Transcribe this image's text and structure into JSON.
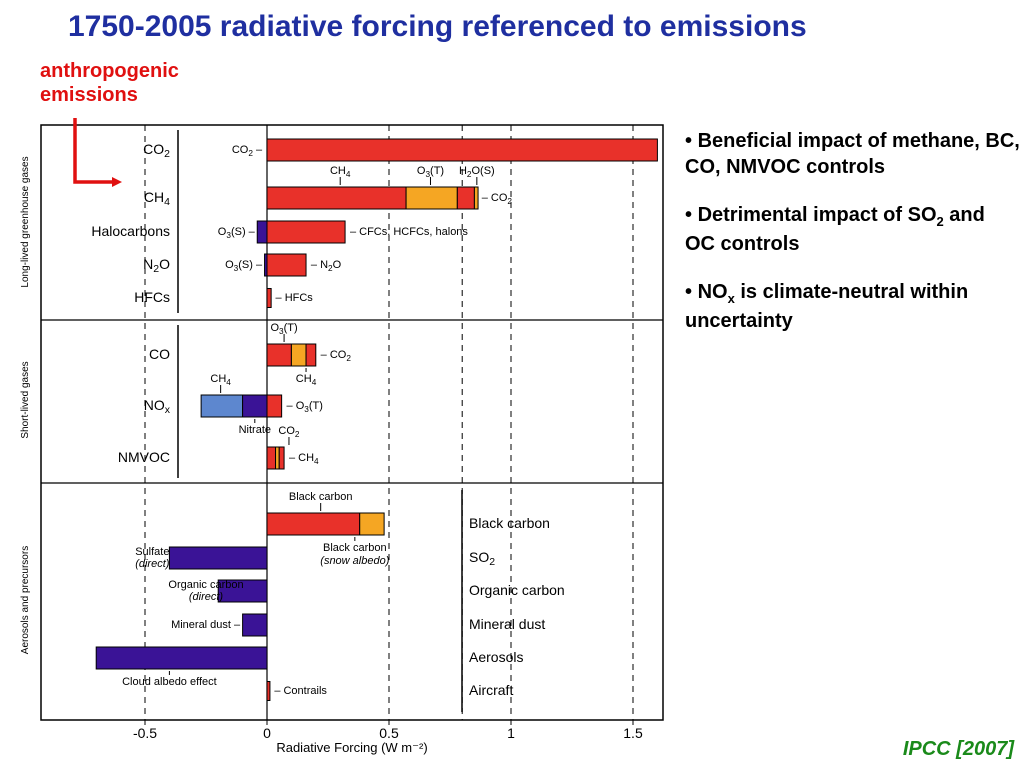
{
  "slide": {
    "title": "1750-2005 radiative forcing referenced to emissions",
    "annotation_line1": "anthropogenic",
    "annotation_line2": "emissions",
    "bullets": [
      {
        "prefix": "• ",
        "text": "Beneficial impact of methane, BC, CO, NMVOC controls"
      },
      {
        "prefix": "• ",
        "text": "Detrimental impact of SO",
        "sub": "2",
        "suffix": " and OC controls"
      },
      {
        "prefix": "• ",
        "text": "NO",
        "sub": "x",
        "suffix": "  is climate-neutral within uncertainty"
      }
    ],
    "citation": "IPCC [2007]"
  },
  "colors": {
    "red": "#e8312a",
    "orange": "#f5a623",
    "dark_blue": "#3a1396",
    "light_blue": "#5d87cf",
    "title_blue": "#1f2fa0",
    "annotation_red": "#e01010",
    "citation_green": "#1a8a1a"
  },
  "chart_data": {
    "type": "bar",
    "orientation": "horizontal-stacked",
    "xlabel": "Radiative Forcing  (W m⁻²)",
    "xlim": [
      -0.88,
      1.6
    ],
    "xticks": [
      -0.5,
      0,
      0.5,
      1,
      1.5
    ],
    "xtick_labels": [
      "-0.5",
      "0",
      "0.5",
      "1",
      "1.5"
    ],
    "dashed_gridlines_x": [
      -0.5,
      0.5,
      0.8,
      1.0,
      1.5
    ],
    "groups": [
      {
        "label": "Long-lived greenhouse gases"
      },
      {
        "label": "Short-lived gases"
      },
      {
        "label": "Aerosols and precursors"
      }
    ],
    "rows": [
      {
        "group": 0,
        "name": "CO2",
        "label_main": "CO",
        "label_sub": "2",
        "segments": [
          {
            "from": 0,
            "to": 1.6,
            "color": "red"
          }
        ],
        "annotations": [
          {
            "text": "CO",
            "sub": "2",
            "suffix": " –",
            "anchor_x": -0.02,
            "side": "left",
            "size": 11
          }
        ]
      },
      {
        "group": 0,
        "name": "CH4",
        "label_main": "CH",
        "label_sub": "4",
        "segments": [
          {
            "from": 0,
            "to": 0.57,
            "color": "red"
          },
          {
            "from": 0.57,
            "to": 0.78,
            "color": "orange"
          },
          {
            "from": 0.78,
            "to": 0.85,
            "color": "red"
          },
          {
            "from": 0.85,
            "to": 0.865,
            "color": "orange"
          }
        ],
        "annotations": [
          {
            "text": "CH",
            "sub": "4",
            "anchor_x": 0.3,
            "side": "above",
            "size": 11
          },
          {
            "text": "O",
            "sub": "3",
            "suffix": "(T)",
            "anchor_x": 0.67,
            "side": "above",
            "size": 11
          },
          {
            "text": "H",
            "sub": "2",
            "suffix": "O(S)",
            "anchor_x": 0.86,
            "side": "above",
            "size": 11
          },
          {
            "text": "– CO",
            "sub": "2",
            "anchor_x": 0.88,
            "side": "right",
            "size": 11
          }
        ]
      },
      {
        "group": 0,
        "name": "Halocarbons",
        "label_main": "Halocarbons",
        "label_sub": "",
        "segments": [
          {
            "from": -0.04,
            "to": 0,
            "color": "dark_blue"
          },
          {
            "from": 0,
            "to": 0.32,
            "color": "red"
          }
        ],
        "annotations": [
          {
            "text": "O",
            "sub": "3",
            "suffix": "(S) –",
            "anchor_x": -0.05,
            "side": "left",
            "size": 11
          },
          {
            "text": "– CFCs, HCFCs, halons",
            "anchor_x": 0.34,
            "side": "right",
            "size": 11
          }
        ]
      },
      {
        "group": 0,
        "name": "N2O",
        "label_main": "N",
        "label_sub": "2",
        "label_suffix": "O",
        "segments": [
          {
            "from": -0.01,
            "to": 0,
            "color": "dark_blue"
          },
          {
            "from": 0,
            "to": 0.16,
            "color": "red"
          }
        ],
        "annotations": [
          {
            "text": "O",
            "sub": "3",
            "suffix": "(S) –",
            "anchor_x": -0.02,
            "side": "left",
            "size": 11
          },
          {
            "text": "– N",
            "sub": "2",
            "suffix": "O",
            "anchor_x": 0.18,
            "side": "right",
            "size": 11
          }
        ]
      },
      {
        "group": 0,
        "name": "HFCs",
        "label_main": "HFCs",
        "label_sub": "",
        "segments": [
          {
            "from": 0,
            "to": 0.017,
            "color": "red"
          }
        ],
        "annotations": [
          {
            "text": "– HFCs",
            "anchor_x": 0.035,
            "side": "right",
            "size": 11
          }
        ]
      },
      {
        "group": 1,
        "name": "CO",
        "label_main": "CO",
        "label_sub": "",
        "segments": [
          {
            "from": 0,
            "to": 0.1,
            "color": "red"
          },
          {
            "from": 0.1,
            "to": 0.16,
            "color": "orange"
          },
          {
            "from": 0.16,
            "to": 0.2,
            "color": "red"
          }
        ],
        "annotations": [
          {
            "text": "O",
            "sub": "3",
            "suffix": "(T)",
            "anchor_x": 0.07,
            "side": "above",
            "size": 11
          },
          {
            "text": "CH",
            "sub": "4",
            "anchor_x": 0.16,
            "side": "below",
            "size": 11
          },
          {
            "text": "– CO",
            "sub": "2",
            "anchor_x": 0.22,
            "side": "right",
            "size": 11
          }
        ]
      },
      {
        "group": 1,
        "name": "NOx",
        "label_main": "NO",
        "label_sub": "x",
        "segments": [
          {
            "from": -0.27,
            "to": -0.1,
            "color": "light_blue"
          },
          {
            "from": -0.1,
            "to": 0,
            "color": "dark_blue"
          },
          {
            "from": 0,
            "to": 0.06,
            "color": "red"
          }
        ],
        "annotations": [
          {
            "text": "CH",
            "sub": "4",
            "anchor_x": -0.19,
            "side": "above",
            "size": 11
          },
          {
            "text": "Nitrate",
            "anchor_x": -0.05,
            "side": "below",
            "size": 11
          },
          {
            "text": "– O",
            "sub": "3",
            "suffix": "(T)",
            "anchor_x": 0.08,
            "side": "right",
            "size": 11
          }
        ]
      },
      {
        "group": 1,
        "name": "NMVOC",
        "label_main": "NMVOC",
        "label_sub": "",
        "segments": [
          {
            "from": 0,
            "to": 0.035,
            "color": "red"
          },
          {
            "from": 0.035,
            "to": 0.05,
            "color": "orange"
          },
          {
            "from": 0.05,
            "to": 0.07,
            "color": "red"
          }
        ],
        "annotations": [
          {
            "text": "CO",
            "sub": "2",
            "anchor_x": 0.09,
            "side": "above",
            "size": 11
          },
          {
            "text": "– CH",
            "sub": "4",
            "anchor_x": 0.09,
            "side": "right",
            "size": 11
          }
        ]
      },
      {
        "group": 2,
        "name": "Black carbon",
        "label_main": "Black carbon",
        "label_sub": "",
        "segments": [
          {
            "from": 0,
            "to": 0.38,
            "color": "red"
          },
          {
            "from": 0.38,
            "to": 0.48,
            "color": "orange"
          }
        ],
        "annotations": [
          {
            "text": "Black carbon",
            "anchor_x": 0.22,
            "side": "above",
            "size": 11
          },
          {
            "text": "Black carbon",
            "anchor_x": 0.36,
            "side": "below",
            "size": 11
          },
          {
            "text": "(snow albedo)",
            "italic": true,
            "anchor_x": 0.36,
            "side": "below2",
            "size": 11
          }
        ]
      },
      {
        "group": 2,
        "name": "SO2",
        "label_main": "SO",
        "label_sub": "2",
        "segments": [
          {
            "from": -0.4,
            "to": 0,
            "color": "dark_blue"
          }
        ],
        "annotations": [
          {
            "text": "Sulfate",
            "suffix2": "(direct)",
            "anchor_x": -0.47,
            "side": "left2",
            "size": 11
          }
        ]
      },
      {
        "group": 2,
        "name": "Organic carbon",
        "label_main": "Organic carbon",
        "label_sub": "",
        "segments": [
          {
            "from": -0.2,
            "to": 0,
            "color": "dark_blue"
          }
        ],
        "annotations": [
          {
            "text": "Organic carbon",
            "suffix2": "(direct)",
            "anchor_x": -0.25,
            "side": "left2",
            "size": 11
          }
        ]
      },
      {
        "group": 2,
        "name": "Mineral dust",
        "label_main": "Mineral dust",
        "label_sub": "",
        "segments": [
          {
            "from": -0.1,
            "to": 0,
            "color": "dark_blue"
          }
        ],
        "annotations": [
          {
            "text": "Mineral dust –",
            "anchor_x": -0.11,
            "side": "left",
            "size": 11
          }
        ]
      },
      {
        "group": 2,
        "name": "Aerosols",
        "label_main": "Aerosols",
        "label_sub": "",
        "segments": [
          {
            "from": -0.7,
            "to": 0,
            "color": "dark_blue"
          }
        ],
        "annotations": [
          {
            "text": "Cloud albedo effect",
            "anchor_x": -0.4,
            "side": "below",
            "size": 11
          }
        ]
      },
      {
        "group": 2,
        "name": "Aircraft",
        "label_main": "Aircraft",
        "label_sub": "",
        "segments": [
          {
            "from": 0,
            "to": 0.012,
            "color": "red"
          }
        ],
        "annotations": [
          {
            "text": "– Contrails",
            "anchor_x": 0.03,
            "side": "right",
            "size": 11
          }
        ]
      }
    ]
  }
}
